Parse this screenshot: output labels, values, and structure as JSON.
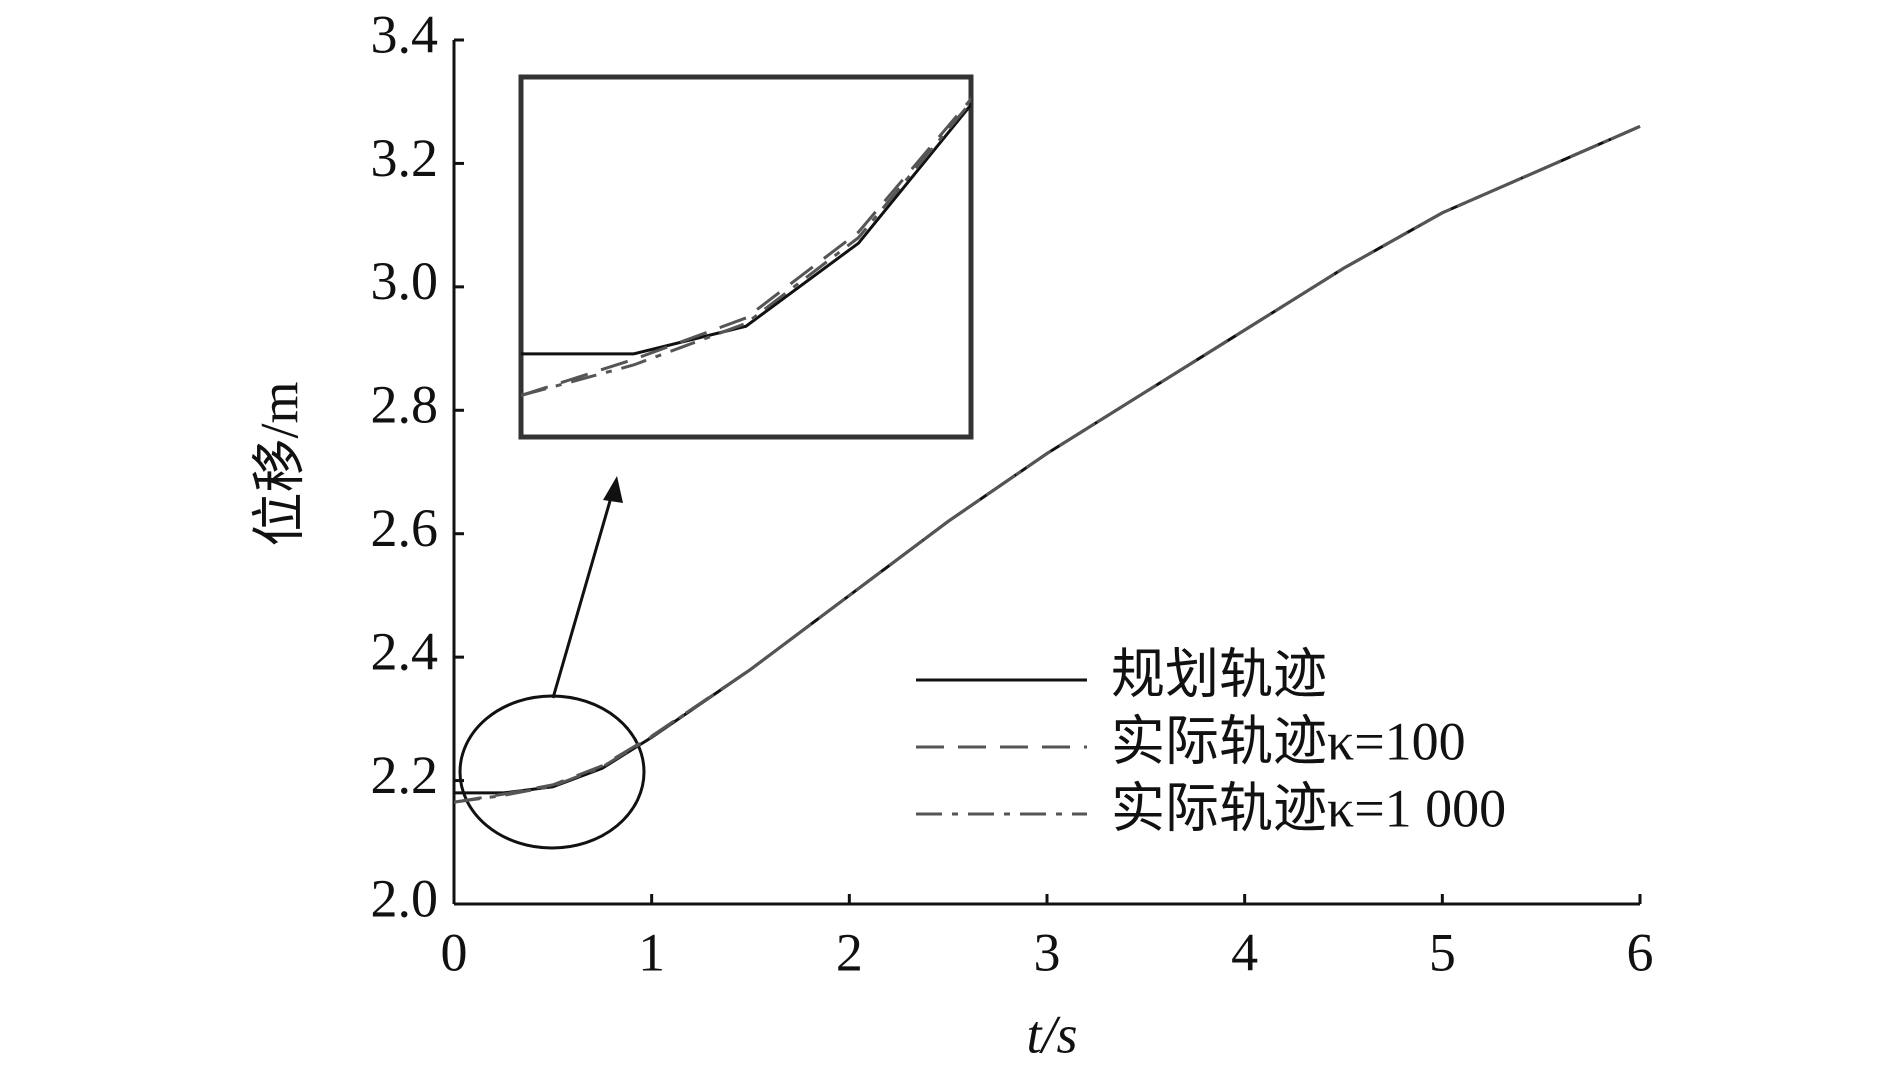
{
  "chart_data": {
    "type": "line",
    "x_label": "t/s",
    "y_label": "位移/m",
    "x": [
      0,
      0.25,
      0.5,
      0.75,
      1,
      1.5,
      2,
      2.5,
      3,
      3.5,
      4,
      4.5,
      5,
      5.5,
      6
    ],
    "series": [
      {
        "name": "规划轨迹",
        "color": "#111111",
        "dash": "solid",
        "values": [
          2.18,
          2.18,
          2.19,
          2.22,
          2.27,
          2.38,
          2.5,
          2.62,
          2.73,
          2.83,
          2.93,
          3.03,
          3.12,
          3.19,
          3.26
        ]
      },
      {
        "name": "实际轨迹κ=100",
        "color": "#555555",
        "dash": "dashed",
        "values": [
          2.165,
          2.178,
          2.193,
          2.224,
          2.272,
          2.38,
          2.5,
          2.62,
          2.73,
          2.83,
          2.93,
          3.03,
          3.12,
          3.19,
          3.26
        ]
      },
      {
        "name": "实际轨迹κ=1 000",
        "color": "#555555",
        "dash": "dashdot",
        "values": [
          2.165,
          2.176,
          2.191,
          2.222,
          2.271,
          2.38,
          2.5,
          2.62,
          2.73,
          2.83,
          2.93,
          3.03,
          3.12,
          3.19,
          3.26
        ]
      }
    ],
    "xlim": [
      0,
      6
    ],
    "xticks": [
      0,
      1,
      2,
      3,
      4,
      5,
      6
    ],
    "ylim": [
      2.0,
      3.4
    ],
    "yticks": [
      {
        "value": 2.0,
        "label": "2.0"
      },
      2.2,
      2.4,
      2.6,
      2.8,
      {
        "value": 3.0,
        "label": "3.0"
      },
      3.2,
      3.4
    ],
    "grid": false,
    "legend": "lower right"
  }
}
